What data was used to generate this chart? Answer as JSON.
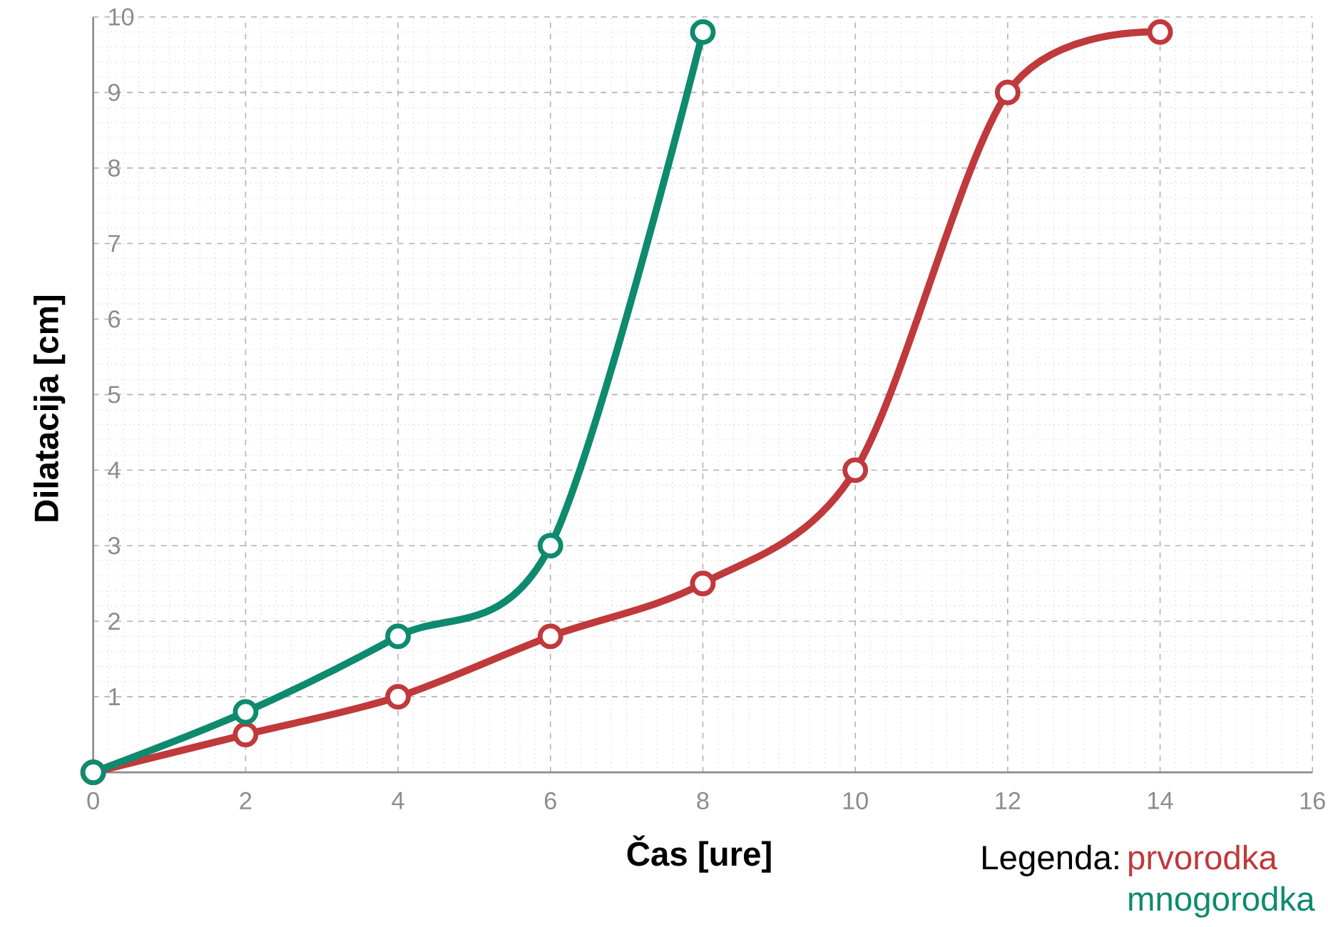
{
  "chart_data": {
    "type": "line",
    "xlabel": "Čas [ure]",
    "ylabel": "Dilatacija [cm]",
    "legend_title": "Legenda:",
    "xlim": [
      0,
      16
    ],
    "ylim": [
      0,
      10
    ],
    "xticks": [
      0,
      2,
      4,
      6,
      8,
      10,
      12,
      14,
      16
    ],
    "yticks": [
      1,
      2,
      3,
      4,
      5,
      6,
      7,
      8,
      9,
      10
    ],
    "grid": true,
    "legend": "bottom right",
    "marker": "circle",
    "line_style": "solid",
    "series": [
      {
        "name": "prvorodka",
        "color": "#c0393b",
        "x": [
          0,
          2,
          4,
          6,
          8,
          10,
          12,
          14
        ],
        "values": [
          0,
          0.5,
          1.0,
          1.8,
          2.5,
          4.0,
          9.0,
          9.8
        ]
      },
      {
        "name": "mnogorodka",
        "color": "#0e8a6e",
        "x": [
          0,
          2,
          4,
          6,
          8
        ],
        "values": [
          0,
          0.8,
          1.8,
          3.0,
          9.8
        ]
      }
    ]
  }
}
